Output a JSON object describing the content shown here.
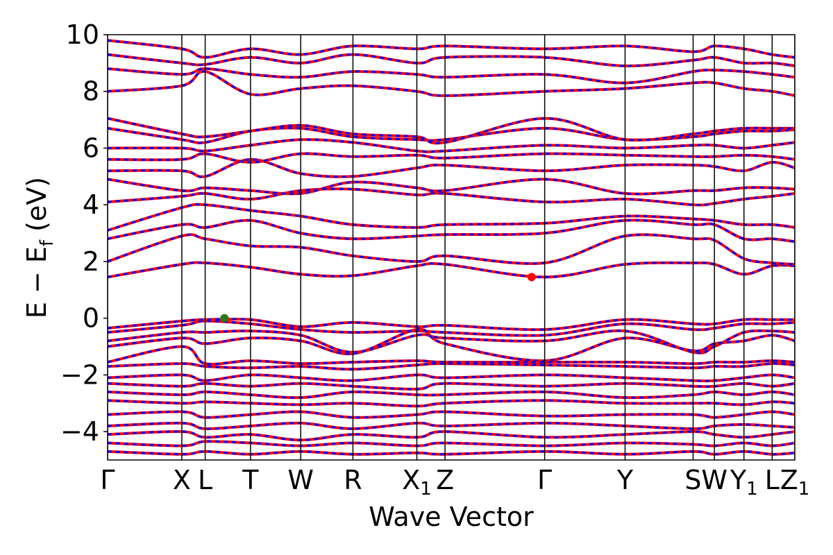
{
  "chart_data": {
    "type": "line",
    "title": "",
    "xlabel": "Wave Vector",
    "ylabel_parts": {
      "main": "E − E",
      "sub": "f",
      "unit": " (eV)"
    },
    "ylim": [
      -5,
      10
    ],
    "yticks": [
      -4,
      -2,
      0,
      2,
      4,
      6,
      8,
      10
    ],
    "ytick_labels": [
      "−4",
      "−2",
      "0",
      "2",
      "4",
      "6",
      "8",
      "10"
    ],
    "kpath": [
      {
        "label": "Γ",
        "x": 0.0,
        "sub": ""
      },
      {
        "label": "X",
        "x": 0.108,
        "sub": ""
      },
      {
        "label": "L",
        "x": 0.142,
        "sub": ""
      },
      {
        "label": "T",
        "x": 0.208,
        "sub": ""
      },
      {
        "label": "W",
        "x": 0.281,
        "sub": ""
      },
      {
        "label": "R",
        "x": 0.357,
        "sub": ""
      },
      {
        "label": "X",
        "x": 0.45,
        "sub": "1"
      },
      {
        "label": "Z",
        "x": 0.491,
        "sub": ""
      },
      {
        "label": "Γ",
        "x": 0.636,
        "sub": ""
      },
      {
        "label": "Y",
        "x": 0.753,
        "sub": ""
      },
      {
        "label": "S",
        "x": 0.852,
        "sub": ""
      },
      {
        "label": "W",
        "x": 0.883,
        "sub": ""
      },
      {
        "label": "Y",
        "x": 0.926,
        "sub": "1"
      },
      {
        "label": "L",
        "x": 0.967,
        "sub": ""
      },
      {
        "label": "Z",
        "x": 1.0,
        "sub": "1"
      }
    ],
    "series": [
      {
        "color": "#ff0000",
        "style": "solid"
      },
      {
        "color": "#0000ff",
        "style": "dashed"
      }
    ],
    "bands": [
      {
        "e": [
          1.45,
          1.9,
          1.95,
          1.8,
          1.55,
          1.5,
          1.85,
          1.9,
          1.45,
          1.9,
          1.95,
          1.9,
          1.55,
          1.85,
          1.85
        ]
      },
      {
        "e": [
          2.0,
          2.9,
          2.8,
          2.55,
          2.5,
          2.2,
          2.0,
          2.2,
          1.95,
          2.9,
          2.8,
          2.75,
          2.1,
          1.95,
          1.9
        ]
      },
      {
        "e": [
          2.8,
          3.3,
          3.2,
          3.45,
          3.0,
          2.8,
          2.9,
          2.95,
          3.0,
          3.45,
          3.3,
          3.3,
          2.8,
          2.8,
          2.7
        ]
      },
      {
        "e": [
          3.1,
          3.9,
          4.0,
          3.8,
          3.6,
          3.3,
          3.2,
          3.3,
          3.35,
          3.6,
          3.5,
          3.45,
          3.3,
          3.3,
          3.2
        ]
      },
      {
        "e": [
          4.1,
          4.3,
          4.4,
          4.2,
          4.5,
          4.55,
          4.35,
          4.4,
          4.1,
          4.2,
          4.0,
          4.05,
          4.2,
          4.3,
          4.4
        ]
      },
      {
        "e": [
          4.9,
          4.5,
          4.6,
          4.5,
          4.4,
          4.8,
          4.6,
          4.5,
          4.9,
          4.4,
          4.5,
          4.5,
          4.6,
          4.6,
          4.55
        ]
      },
      {
        "e": [
          5.2,
          5.2,
          5.0,
          5.6,
          5.1,
          5.0,
          5.3,
          5.4,
          5.2,
          5.4,
          5.4,
          5.35,
          5.2,
          5.5,
          5.3
        ]
      },
      {
        "e": [
          5.6,
          5.6,
          5.8,
          5.5,
          5.8,
          5.7,
          5.75,
          5.65,
          5.8,
          5.75,
          5.7,
          5.7,
          5.75,
          5.7,
          5.6
        ]
      },
      {
        "e": [
          6.0,
          6.0,
          5.9,
          6.1,
          6.3,
          6.2,
          5.9,
          5.9,
          6.1,
          6.0,
          6.1,
          6.1,
          6.0,
          6.1,
          6.2
        ]
      },
      {
        "e": [
          6.7,
          6.3,
          6.2,
          6.6,
          6.7,
          6.4,
          6.3,
          6.3,
          6.7,
          6.3,
          6.4,
          6.5,
          6.6,
          6.6,
          6.65
        ]
      },
      {
        "e": [
          7.05,
          6.5,
          6.4,
          6.6,
          6.8,
          6.5,
          6.4,
          6.2,
          7.05,
          6.3,
          6.5,
          6.6,
          6.7,
          6.7,
          6.7
        ]
      },
      {
        "e": [
          8.0,
          8.2,
          8.7,
          7.9,
          8.1,
          8.2,
          8.0,
          7.85,
          8.0,
          8.1,
          8.3,
          8.3,
          8.1,
          8.0,
          7.85
        ]
      },
      {
        "e": [
          8.8,
          8.6,
          8.8,
          8.6,
          8.5,
          8.7,
          8.6,
          8.5,
          8.6,
          8.3,
          8.7,
          8.75,
          8.7,
          8.6,
          8.5
        ]
      },
      {
        "e": [
          9.3,
          9.0,
          8.95,
          9.2,
          9.0,
          9.3,
          9.0,
          9.2,
          9.2,
          8.9,
          9.1,
          9.2,
          9.0,
          9.0,
          8.9
        ]
      },
      {
        "e": [
          9.8,
          9.5,
          9.2,
          9.5,
          9.3,
          9.6,
          9.5,
          9.6,
          9.5,
          9.6,
          9.4,
          9.6,
          9.5,
          9.3,
          9.2
        ]
      },
      {
        "e": [
          -0.35,
          -0.1,
          -0.05,
          -0.05,
          -0.3,
          -0.15,
          -0.3,
          -0.25,
          -0.4,
          -0.05,
          -0.2,
          -0.2,
          -0.05,
          -0.05,
          -0.05
        ]
      },
      {
        "e": [
          -0.5,
          -0.25,
          -0.1,
          -0.2,
          -0.4,
          -0.5,
          -0.45,
          -0.5,
          -0.6,
          -0.2,
          -0.4,
          -0.35,
          -0.2,
          -0.2,
          -0.15
        ]
      },
      {
        "e": [
          -0.8,
          -0.5,
          -0.5,
          -0.45,
          -0.6,
          -1.2,
          -0.6,
          -0.7,
          -0.8,
          -0.45,
          -1.2,
          -1.0,
          -0.5,
          -0.45,
          -0.5
        ]
      },
      {
        "e": [
          -1.0,
          -0.7,
          -0.9,
          -0.7,
          -0.8,
          -1.25,
          -0.4,
          -0.9,
          -1.5,
          -0.7,
          -1.15,
          -0.9,
          -0.8,
          -0.6,
          -0.8
        ]
      },
      {
        "e": [
          -1.55,
          -1.0,
          -1.6,
          -1.5,
          -1.6,
          -1.55,
          -1.5,
          -1.55,
          -1.55,
          -1.55,
          -1.6,
          -1.55,
          -1.55,
          -1.5,
          -1.55
        ]
      },
      {
        "e": [
          -1.7,
          -1.6,
          -1.7,
          -1.75,
          -1.7,
          -1.8,
          -1.65,
          -1.6,
          -1.65,
          -1.7,
          -1.75,
          -1.7,
          -1.7,
          -1.6,
          -1.65
        ]
      },
      {
        "e": [
          -2.1,
          -2.0,
          -2.2,
          -2.0,
          -2.1,
          -2.2,
          -2.0,
          -2.1,
          -2.0,
          -2.1,
          -2.2,
          -2.2,
          -2.1,
          -2.0,
          -2.1
        ]
      },
      {
        "e": [
          -2.3,
          -2.4,
          -2.3,
          -2.4,
          -2.3,
          -2.4,
          -2.5,
          -2.3,
          -2.4,
          -2.3,
          -2.4,
          -2.4,
          -2.3,
          -2.4,
          -2.3
        ]
      },
      {
        "e": [
          -2.6,
          -2.7,
          -2.6,
          -2.7,
          -2.8,
          -2.6,
          -2.7,
          -2.7,
          -2.6,
          -2.8,
          -2.7,
          -2.6,
          -2.7,
          -2.6,
          -2.7
        ]
      },
      {
        "e": [
          -2.9,
          -3.0,
          -2.95,
          -3.0,
          -3.05,
          -3.0,
          -3.1,
          -3.0,
          -2.9,
          -3.0,
          -3.0,
          -3.0,
          -3.05,
          -2.95,
          -3.0
        ]
      },
      {
        "e": [
          -3.4,
          -3.3,
          -3.5,
          -3.4,
          -3.3,
          -3.5,
          -3.4,
          -3.3,
          -3.45,
          -3.4,
          -3.4,
          -3.5,
          -3.4,
          -3.3,
          -3.4
        ]
      },
      {
        "e": [
          -3.8,
          -3.7,
          -3.9,
          -3.8,
          -3.7,
          -3.9,
          -3.7,
          -3.8,
          -3.7,
          -3.8,
          -3.9,
          -3.8,
          -3.75,
          -3.8,
          -3.85
        ]
      },
      {
        "e": [
          -4.1,
          -4.0,
          -4.2,
          -4.1,
          -4.3,
          -4.1,
          -4.2,
          -4.0,
          -4.2,
          -4.1,
          -4.0,
          -4.1,
          -4.2,
          -4.1,
          -4.0
        ]
      },
      {
        "e": [
          -4.4,
          -4.5,
          -4.35,
          -4.4,
          -4.5,
          -4.4,
          -4.5,
          -4.4,
          -4.5,
          -4.4,
          -4.45,
          -4.5,
          -4.4,
          -4.5,
          -4.4
        ]
      },
      {
        "e": [
          -4.7,
          -4.8,
          -4.7,
          -4.8,
          -4.7,
          -4.8,
          -4.75,
          -4.8,
          -4.7,
          -4.8,
          -4.7,
          -4.8,
          -4.7,
          -4.8,
          -4.75
        ]
      }
    ],
    "markers": [
      {
        "x": 0.17,
        "e": 0.0,
        "color": "#2a7a1a"
      },
      {
        "x": 0.617,
        "e": 1.45,
        "color": "#ff0000"
      }
    ]
  }
}
